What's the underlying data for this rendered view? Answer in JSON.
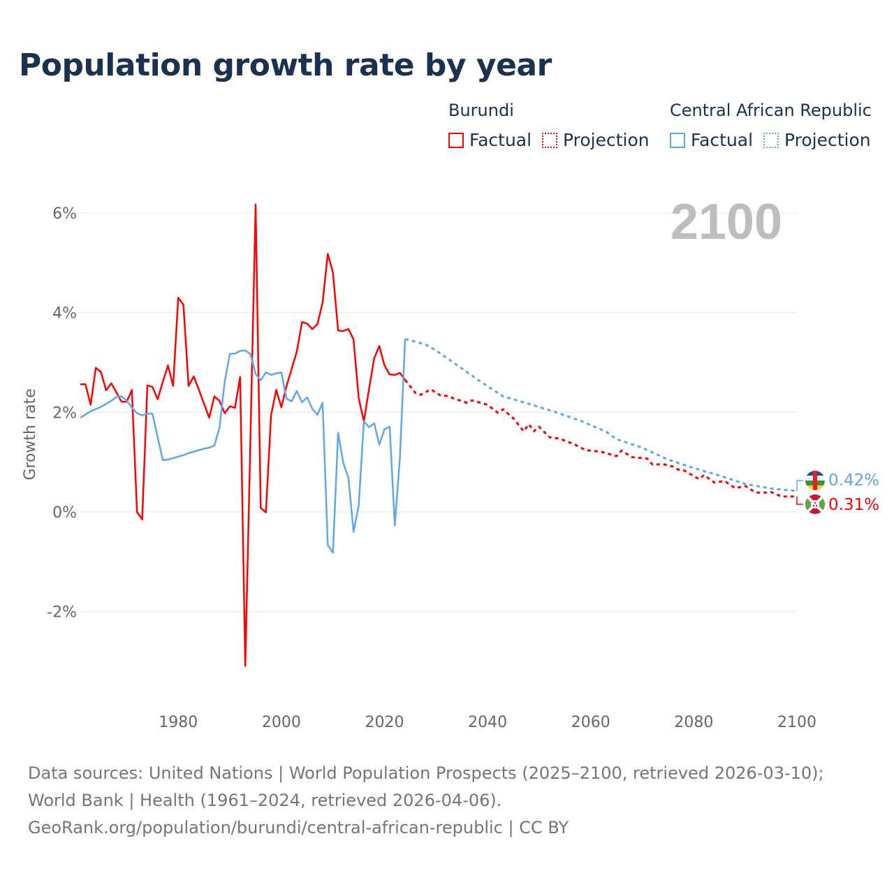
{
  "title": "Population growth rate by year",
  "legend": {
    "groups": [
      {
        "name": "Burundi",
        "factual": "Factual",
        "projection": "Projection",
        "color": "#ff0000"
      },
      {
        "name": "Central African Republic",
        "factual": "Factual",
        "projection": "Projection",
        "color": "#5ea8ea"
      }
    ]
  },
  "year_watermark": "2100",
  "end_labels": {
    "burundi": "0.31%",
    "car": "0.42%"
  },
  "footer": {
    "sources": "Data sources: United Nations | World Population Prospects (2025–2100, retrieved 2026-03-10); World Bank | Health (1961–2024, retrieved 2026-04-06).",
    "url": "GeoRank.org/population/burundi/central-african-republic | CC BY"
  },
  "chart_data": {
    "type": "line",
    "title": "Population growth rate by year",
    "xlabel": "",
    "ylabel": "Growth rate",
    "xlim": [
      1961,
      2100
    ],
    "ylim": [
      -3.5,
      6.5
    ],
    "yticks": [
      6,
      4,
      2,
      0,
      -2
    ],
    "ytick_labels": [
      "6%",
      "4%",
      "2%",
      "0%",
      "-2%"
    ],
    "xticks": [
      1980,
      2000,
      2020,
      2040,
      2060,
      2080,
      2100
    ],
    "xtick_labels": [
      "1980",
      "2000",
      "2020",
      "2040",
      "2060",
      "2080",
      "2100"
    ],
    "grid": true,
    "legend_position": "top-right",
    "series": [
      {
        "name": "Burundi Factual",
        "color": "#ff0000",
        "style": "solid",
        "x": [
          1961,
          1962,
          1963,
          1964,
          1965,
          1966,
          1967,
          1968,
          1969,
          1970,
          1971,
          1972,
          1973,
          1974,
          1975,
          1976,
          1977,
          1978,
          1979,
          1980,
          1981,
          1982,
          1983,
          1984,
          1985,
          1986,
          1987,
          1988,
          1989,
          1990,
          1991,
          1992,
          1993,
          1994,
          1995,
          1996,
          1997,
          1998,
          1999,
          2000,
          2001,
          2002,
          2003,
          2004,
          2005,
          2006,
          2007,
          2008,
          2009,
          2010,
          2011,
          2012,
          2013,
          2014,
          2015,
          2016,
          2017,
          2018,
          2019,
          2020,
          2021,
          2022,
          2023,
          2024
        ],
        "y": [
          2.56,
          2.56,
          2.15,
          2.89,
          2.81,
          2.44,
          2.58,
          2.4,
          2.21,
          2.21,
          2.45,
          0.0,
          -0.15,
          2.54,
          2.51,
          2.26,
          2.61,
          2.94,
          2.53,
          4.3,
          4.16,
          2.53,
          2.72,
          2.45,
          2.17,
          1.89,
          2.32,
          2.23,
          1.98,
          2.12,
          2.09,
          2.71,
          -3.09,
          1.5,
          6.17,
          0.08,
          -0.01,
          1.94,
          2.45,
          2.1,
          2.53,
          2.87,
          3.22,
          3.81,
          3.78,
          3.67,
          3.77,
          4.2,
          5.18,
          4.8,
          3.64,
          3.63,
          3.67,
          3.46,
          2.28,
          1.82,
          2.47,
          3.08,
          3.33,
          2.94,
          2.76,
          2.75,
          2.79,
          2.65
        ]
      },
      {
        "name": "Burundi Projection",
        "color": "#ff0000",
        "style": "dotted",
        "x": [
          2024,
          2026,
          2027,
          2029,
          2031,
          2032,
          2036,
          2037,
          2040,
          2042,
          2043,
          2045,
          2047,
          2048,
          2049,
          2050,
          2052,
          2054,
          2057,
          2059,
          2062,
          2065,
          2066,
          2068,
          2071,
          2072,
          2074,
          2076,
          2077,
          2078,
          2081,
          2082,
          2084,
          2086,
          2088,
          2090,
          2092,
          2094,
          2095,
          2097,
          2099,
          2100
        ],
        "y": [
          2.65,
          2.39,
          2.35,
          2.46,
          2.33,
          2.33,
          2.19,
          2.24,
          2.15,
          1.99,
          2.06,
          1.88,
          1.62,
          1.76,
          1.62,
          1.71,
          1.5,
          1.47,
          1.35,
          1.24,
          1.21,
          1.12,
          1.23,
          1.1,
          1.07,
          0.95,
          0.96,
          0.91,
          0.85,
          0.84,
          0.66,
          0.74,
          0.59,
          0.62,
          0.48,
          0.52,
          0.39,
          0.39,
          0.4,
          0.31,
          0.31,
          0.31
        ]
      },
      {
        "name": "Central African Republic Factual",
        "color": "#5ea8ea",
        "style": "solid",
        "x": [
          1961,
          1963,
          1965,
          1967,
          1968,
          1969,
          1970,
          1971,
          1972,
          1973,
          1974,
          1975,
          1976,
          1977,
          1978,
          1979,
          1980,
          1981,
          1982,
          1983,
          1984,
          1985,
          1986,
          1987,
          1988,
          1989,
          1990,
          1991,
          1992,
          1993,
          1994,
          1995,
          1996,
          1997,
          1998,
          1999,
          2000,
          2001,
          2002,
          2003,
          2004,
          2005,
          2006,
          2007,
          2008,
          2009,
          2010,
          2011,
          2012,
          2013,
          2014,
          2015,
          2016,
          2017,
          2018,
          2019,
          2020,
          2021,
          2022,
          2023,
          2024
        ],
        "y": [
          1.89,
          2.02,
          2.11,
          2.23,
          2.31,
          2.32,
          2.23,
          2.1,
          1.98,
          1.94,
          1.97,
          1.97,
          1.5,
          1.04,
          1.05,
          1.08,
          1.11,
          1.14,
          1.18,
          1.21,
          1.24,
          1.27,
          1.29,
          1.33,
          1.69,
          2.61,
          3.17,
          3.18,
          3.23,
          3.24,
          3.17,
          2.77,
          2.64,
          2.8,
          2.75,
          2.78,
          2.8,
          2.27,
          2.22,
          2.43,
          2.2,
          2.3,
          2.07,
          1.95,
          2.19,
          -0.66,
          -0.82,
          1.59,
          0.99,
          0.69,
          -0.4,
          0.13,
          1.82,
          1.7,
          1.78,
          1.35,
          1.66,
          1.71,
          -0.27,
          1.09,
          3.47
        ]
      },
      {
        "name": "Central African Republic Projection",
        "color": "#5ea8ea",
        "style": "dotted",
        "x": [
          2024,
          2028,
          2030,
          2035,
          2038,
          2043,
          2048,
          2053,
          2058,
          2063,
          2065,
          2070,
          2075,
          2080,
          2085,
          2090,
          2095,
          2100
        ],
        "y": [
          3.47,
          3.36,
          3.24,
          2.88,
          2.66,
          2.32,
          2.17,
          2.01,
          1.83,
          1.61,
          1.46,
          1.29,
          1.05,
          0.88,
          0.73,
          0.56,
          0.47,
          0.42
        ]
      }
    ]
  }
}
